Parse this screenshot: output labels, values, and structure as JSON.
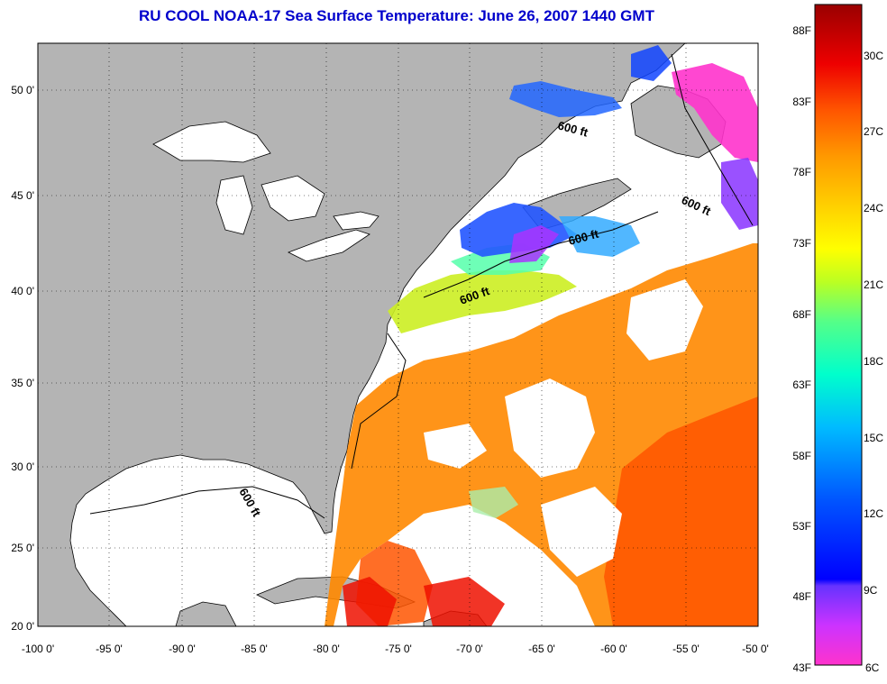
{
  "title": "RU COOL  NOAA-17  Sea Surface Temperature:  June 26, 2007 1440 GMT",
  "map": {
    "lon_range": [
      -100,
      -50
    ],
    "lat_range": [
      20,
      52.5
    ],
    "x_ticks": [
      "-100 0'",
      "-95 0'",
      "-90 0'",
      "-85 0'",
      "-80 0'",
      "-75 0'",
      "-70 0'",
      "-65 0'",
      "-60 0'",
      "-55 0'",
      "-50 0'"
    ],
    "y_ticks": [
      "50 0'",
      "45 0'",
      "40 0'",
      "35 0'",
      "30 0'",
      "25 0'",
      "20 0'"
    ],
    "land_color": "#b4b4b4",
    "water_color": "#ffffff",
    "grid": true,
    "contour_labels": [
      "600 ft",
      "600 ft",
      "600 ft",
      "600 ft",
      "600 ft"
    ]
  },
  "colorbar": {
    "f_labels": [
      "88F",
      "83F",
      "78F",
      "73F",
      "68F",
      "63F",
      "58F",
      "53F",
      "48F",
      "43F"
    ],
    "c_labels": [
      "30C",
      "27C",
      "24C",
      "21C",
      "18C",
      "15C",
      "12C",
      "9C",
      "6C"
    ],
    "colors": [
      "#ff33cc",
      "#9933ff",
      "#0000ff",
      "#0066ff",
      "#00ccff",
      "#00ffcc",
      "#33ff99",
      "#99ff33",
      "#ffff00",
      "#ffcc00",
      "#ff9900",
      "#ff6600",
      "#ff0000",
      "#cc0000",
      "#990000"
    ]
  }
}
